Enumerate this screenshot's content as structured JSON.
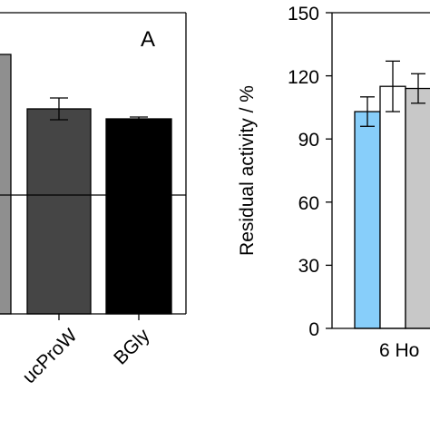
{
  "chart_data": [
    {
      "type": "bar",
      "panel_label": "A",
      "categories": [
        "",
        "ucProW",
        "BGly"
      ],
      "values": [
        null,
        null,
        null
      ],
      "errors": [
        null,
        null,
        null
      ],
      "colors": [
        "#8f8f8f",
        "#454545",
        "#000000"
      ],
      "reference_line": true,
      "note": ""
    },
    {
      "type": "bar",
      "ylabel": "Residual activity / %",
      "ylim": [
        0,
        150
      ],
      "yticks": [
        "0",
        "30",
        "60",
        "90",
        "120",
        "150"
      ],
      "categories": [
        "6 Ho"
      ],
      "series": [
        {
          "values": [
            103
          ],
          "errors": [
            7
          ],
          "color": "#87cefa"
        },
        {
          "values": [
            115
          ],
          "errors": [
            12
          ],
          "color": "#ffffff"
        },
        {
          "values": [
            114
          ],
          "errors": [
            7
          ],
          "color": "#c8c8c8"
        }
      ]
    }
  ]
}
